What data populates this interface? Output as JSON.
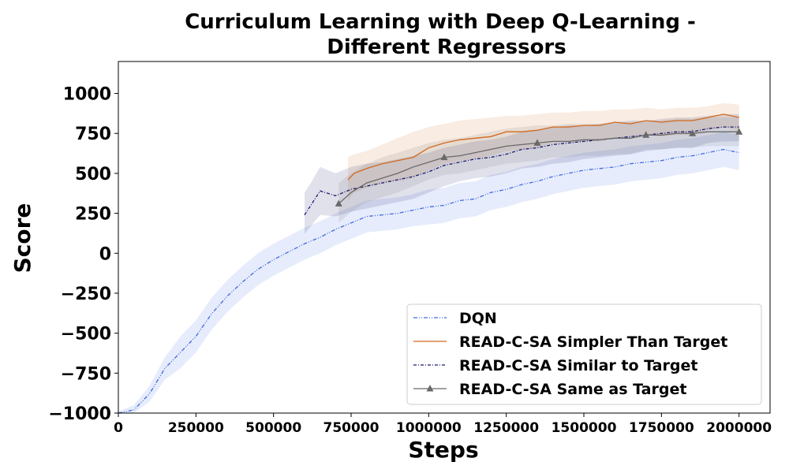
{
  "chart_data": {
    "type": "line",
    "title_line1": "Curriculum Learning with Deep Q-Learning -",
    "title_line2": "Different Regressors",
    "xlabel": "Steps",
    "ylabel": "Score",
    "xlim": [
      0,
      2100000
    ],
    "ylim": [
      -1000,
      1200
    ],
    "xticks": [
      0,
      250000,
      500000,
      750000,
      1000000,
      1250000,
      1500000,
      1750000,
      2000000
    ],
    "xtick_labels": [
      "0",
      "250000",
      "500000",
      "750000",
      "1000000",
      "1250000",
      "1500000",
      "1750000",
      "2000000"
    ],
    "yticks": [
      -1000,
      -750,
      -500,
      -250,
      0,
      250,
      500,
      750,
      1000
    ],
    "ytick_labels": [
      "−1000",
      "−750",
      "−500",
      "−250",
      "0",
      "250",
      "500",
      "750",
      "1000"
    ],
    "grid": false,
    "legend_position": "lower-right",
    "series": [
      {
        "name": "DQN",
        "color": "#4169e1",
        "line_style": "dash-dot-dot",
        "marker": "none",
        "x": [
          0,
          50000,
          100000,
          150000,
          200000,
          250000,
          300000,
          350000,
          400000,
          450000,
          500000,
          550000,
          600000,
          650000,
          700000,
          750000,
          800000,
          850000,
          900000,
          950000,
          1000000,
          1050000,
          1100000,
          1150000,
          1200000,
          1250000,
          1300000,
          1350000,
          1400000,
          1450000,
          1500000,
          1550000,
          1600000,
          1650000,
          1700000,
          1750000,
          1800000,
          1850000,
          1900000,
          1950000,
          2000000
        ],
        "y": [
          -1000,
          -980,
          -880,
          -720,
          -620,
          -520,
          -380,
          -270,
          -180,
          -100,
          -40,
          10,
          60,
          100,
          150,
          190,
          230,
          240,
          250,
          270,
          290,
          300,
          330,
          340,
          380,
          400,
          430,
          450,
          480,
          500,
          520,
          530,
          540,
          560,
          570,
          580,
          600,
          610,
          630,
          650,
          630
        ],
        "upper": [
          -990,
          -950,
          -830,
          -650,
          -520,
          -420,
          -280,
          -170,
          -80,
          0,
          60,
          110,
          160,
          200,
          250,
          290,
          330,
          340,
          350,
          370,
          400,
          410,
          440,
          450,
          490,
          510,
          540,
          560,
          590,
          610,
          630,
          640,
          650,
          670,
          680,
          690,
          710,
          720,
          740,
          760,
          740
        ],
        "lower": [
          -1000,
          -1000,
          -930,
          -790,
          -720,
          -620,
          -480,
          -370,
          -280,
          -200,
          -140,
          -90,
          -40,
          0,
          50,
          90,
          130,
          140,
          150,
          170,
          180,
          190,
          220,
          230,
          270,
          290,
          320,
          340,
          370,
          390,
          410,
          420,
          430,
          450,
          460,
          470,
          490,
          500,
          520,
          540,
          520
        ]
      },
      {
        "name": "READ-C-SA Simpler Than Target",
        "color": "#d2691e",
        "line_style": "solid",
        "marker": "none",
        "x": [
          740000,
          760000,
          800000,
          850000,
          900000,
          950000,
          1000000,
          1050000,
          1100000,
          1150000,
          1200000,
          1250000,
          1300000,
          1350000,
          1400000,
          1450000,
          1500000,
          1550000,
          1600000,
          1650000,
          1700000,
          1750000,
          1800000,
          1850000,
          1900000,
          1950000,
          2000000
        ],
        "y": [
          460,
          500,
          530,
          560,
          580,
          600,
          660,
          690,
          710,
          720,
          730,
          760,
          760,
          770,
          790,
          790,
          800,
          800,
          820,
          810,
          830,
          820,
          830,
          830,
          850,
          870,
          850
        ],
        "upper": [
          600,
          620,
          640,
          680,
          720,
          760,
          790,
          810,
          830,
          840,
          850,
          860,
          860,
          870,
          880,
          880,
          890,
          890,
          900,
          900,
          910,
          900,
          910,
          910,
          920,
          940,
          930
        ],
        "lower": [
          330,
          380,
          410,
          440,
          450,
          470,
          520,
          560,
          580,
          590,
          610,
          640,
          650,
          660,
          690,
          690,
          700,
          700,
          720,
          720,
          740,
          730,
          740,
          740,
          770,
          790,
          770
        ]
      },
      {
        "name": "READ-C-SA Similar to Target",
        "color": "#191970",
        "line_style": "dash-dot",
        "marker": "none",
        "x": [
          600000,
          620000,
          650000,
          700000,
          750000,
          800000,
          850000,
          900000,
          950000,
          1000000,
          1050000,
          1100000,
          1150000,
          1200000,
          1250000,
          1300000,
          1350000,
          1400000,
          1450000,
          1500000,
          1550000,
          1600000,
          1650000,
          1700000,
          1750000,
          1800000,
          1850000,
          1900000,
          1950000,
          2000000
        ],
        "y": [
          240,
          300,
          390,
          360,
          400,
          420,
          440,
          460,
          480,
          510,
          550,
          570,
          590,
          600,
          620,
          650,
          660,
          680,
          690,
          700,
          710,
          720,
          730,
          740,
          750,
          760,
          760,
          780,
          790,
          790
        ],
        "upper": [
          380,
          440,
          540,
          500,
          540,
          560,
          570,
          590,
          610,
          630,
          660,
          680,
          700,
          710,
          730,
          760,
          770,
          790,
          800,
          800,
          810,
          820,
          830,
          830,
          840,
          850,
          850,
          860,
          870,
          870
        ],
        "lower": [
          120,
          170,
          240,
          230,
          260,
          280,
          300,
          320,
          340,
          380,
          420,
          450,
          470,
          480,
          500,
          530,
          540,
          560,
          570,
          590,
          600,
          610,
          620,
          640,
          650,
          660,
          660,
          690,
          700,
          700
        ]
      },
      {
        "name": "READ-C-SA Same as Target",
        "color": "#696969",
        "line_style": "solid",
        "marker": "triangle",
        "x": [
          710000,
          750000,
          800000,
          850000,
          900000,
          950000,
          1000000,
          1050000,
          1100000,
          1150000,
          1200000,
          1250000,
          1300000,
          1350000,
          1400000,
          1450000,
          1500000,
          1550000,
          1600000,
          1650000,
          1700000,
          1750000,
          1800000,
          1850000,
          1900000,
          1950000,
          2000000
        ],
        "y": [
          310,
          380,
          440,
          470,
          500,
          540,
          570,
          600,
          610,
          630,
          650,
          670,
          680,
          690,
          700,
          700,
          710,
          710,
          720,
          720,
          740,
          740,
          750,
          750,
          760,
          760,
          760
        ],
        "upper": [
          440,
          500,
          560,
          600,
          630,
          660,
          690,
          710,
          720,
          740,
          760,
          780,
          790,
          800,
          800,
          810,
          810,
          810,
          820,
          820,
          830,
          830,
          840,
          840,
          850,
          850,
          850
        ],
        "lower": [
          190,
          260,
          320,
          350,
          380,
          420,
          460,
          490,
          500,
          520,
          540,
          560,
          570,
          580,
          600,
          600,
          610,
          610,
          620,
          620,
          650,
          650,
          660,
          660,
          670,
          670,
          670
        ],
        "marker_x": [
          710000,
          1050000,
          1350000,
          1700000,
          1850000,
          2000000
        ]
      }
    ]
  }
}
